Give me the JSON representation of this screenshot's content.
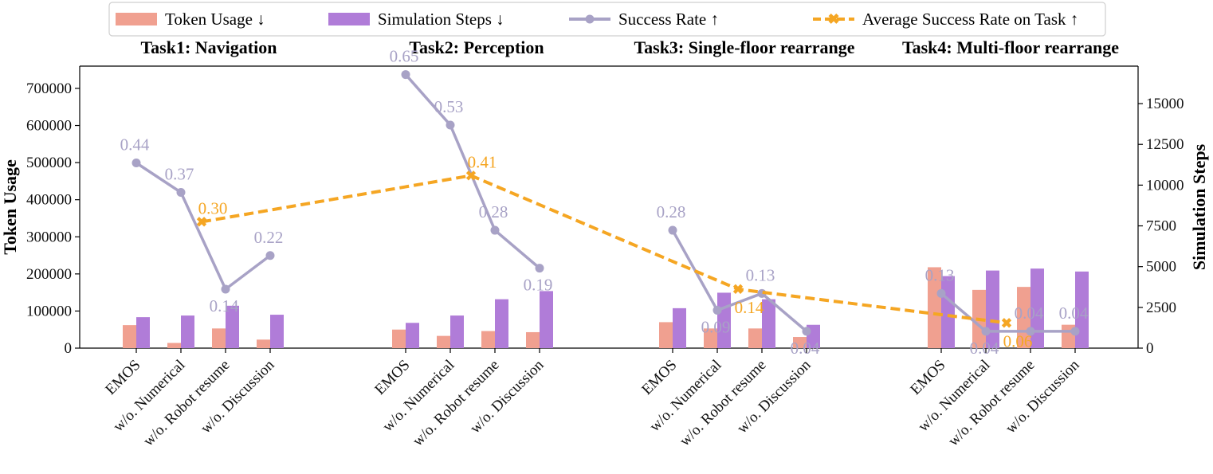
{
  "chart_data": {
    "type": "bar",
    "title": "",
    "legend": {
      "placement": "top-center",
      "entries": [
        {
          "label": "Token Usage ↓",
          "kind": "bar",
          "color": "#f0a090"
        },
        {
          "label": "Simulation Steps ↓",
          "kind": "bar",
          "color": "#b07cd8"
        },
        {
          "label": "Success Rate ↑",
          "kind": "line",
          "color": "#a8a2c6"
        },
        {
          "label": "Average Success Rate on Task ↑",
          "kind": "dashed-line",
          "color": "#f5a623"
        }
      ]
    },
    "ylabel": "Token Usage",
    "y2label": "Simulation Steps",
    "ylim": [
      0,
      760000
    ],
    "y2lim": [
      0,
      17300
    ],
    "yticks": [
      0,
      100000,
      200000,
      300000,
      400000,
      500000,
      600000,
      700000
    ],
    "y2ticks": [
      0,
      2500,
      5000,
      7500,
      10000,
      12500,
      15000
    ],
    "success_rate_range": [
      0.0,
      0.67
    ],
    "colors": {
      "token": "#f0a090",
      "steps": "#b07cd8",
      "success": "#a8a2c6",
      "average": "#f5a623"
    },
    "groups": [
      {
        "title": "Task1: Navigation",
        "categories": [
          "EMOS",
          "w/o. Numerical",
          "w/o. Robot resume",
          "w/o. Discussion"
        ],
        "token_usage": [
          62000,
          14000,
          53000,
          23000
        ],
        "simulation_steps": [
          1900,
          2000,
          2600,
          2050
        ],
        "success_rate": [
          0.44,
          0.37,
          0.14,
          0.22
        ],
        "success_rate_labels": [
          "0.44",
          "0.37",
          "0.14",
          "0.22"
        ],
        "average_success_rate": 0.3,
        "average_label": "0.30"
      },
      {
        "title": "Task2: Perception",
        "categories": [
          "EMOS",
          "w/o. Numerical",
          "w/o. Robot resume",
          "w/o. Discussion"
        ],
        "token_usage": [
          50000,
          33000,
          46000,
          43000
        ],
        "simulation_steps": [
          1550,
          2000,
          3000,
          3500
        ],
        "success_rate": [
          0.65,
          0.53,
          0.28,
          0.19
        ],
        "success_rate_labels": [
          "0.65",
          "0.53",
          "0.28",
          "0.19"
        ],
        "average_success_rate": 0.41,
        "average_label": "0.41"
      },
      {
        "title": "Task3: Single-floor rearrange",
        "categories": [
          "EMOS",
          "w/o. Numerical",
          "w/o. Robot resume",
          "w/o. Discussion"
        ],
        "token_usage": [
          70000,
          53000,
          53000,
          30000
        ],
        "simulation_steps": [
          2450,
          3400,
          3000,
          1430
        ],
        "success_rate": [
          0.28,
          0.09,
          0.13,
          0.04
        ],
        "success_rate_labels": [
          "0.28",
          "0.09",
          "0.13",
          "0.04"
        ],
        "average_success_rate": 0.14,
        "average_label": "0.14"
      },
      {
        "title": "Task4: Multi-floor rearrange",
        "categories": [
          "EMOS",
          "w/o. Numerical",
          "w/o. Robot resume",
          "w/o. Discussion"
        ],
        "token_usage": [
          218000,
          157000,
          165000,
          63000
        ],
        "simulation_steps": [
          4420,
          4760,
          4880,
          4700
        ],
        "success_rate": [
          0.13,
          0.04,
          0.04,
          0.04
        ],
        "success_rate_labels": [
          "0.13",
          "0.04",
          "0.04",
          "0.04"
        ],
        "average_success_rate": 0.06,
        "average_label": "0.06"
      }
    ]
  }
}
